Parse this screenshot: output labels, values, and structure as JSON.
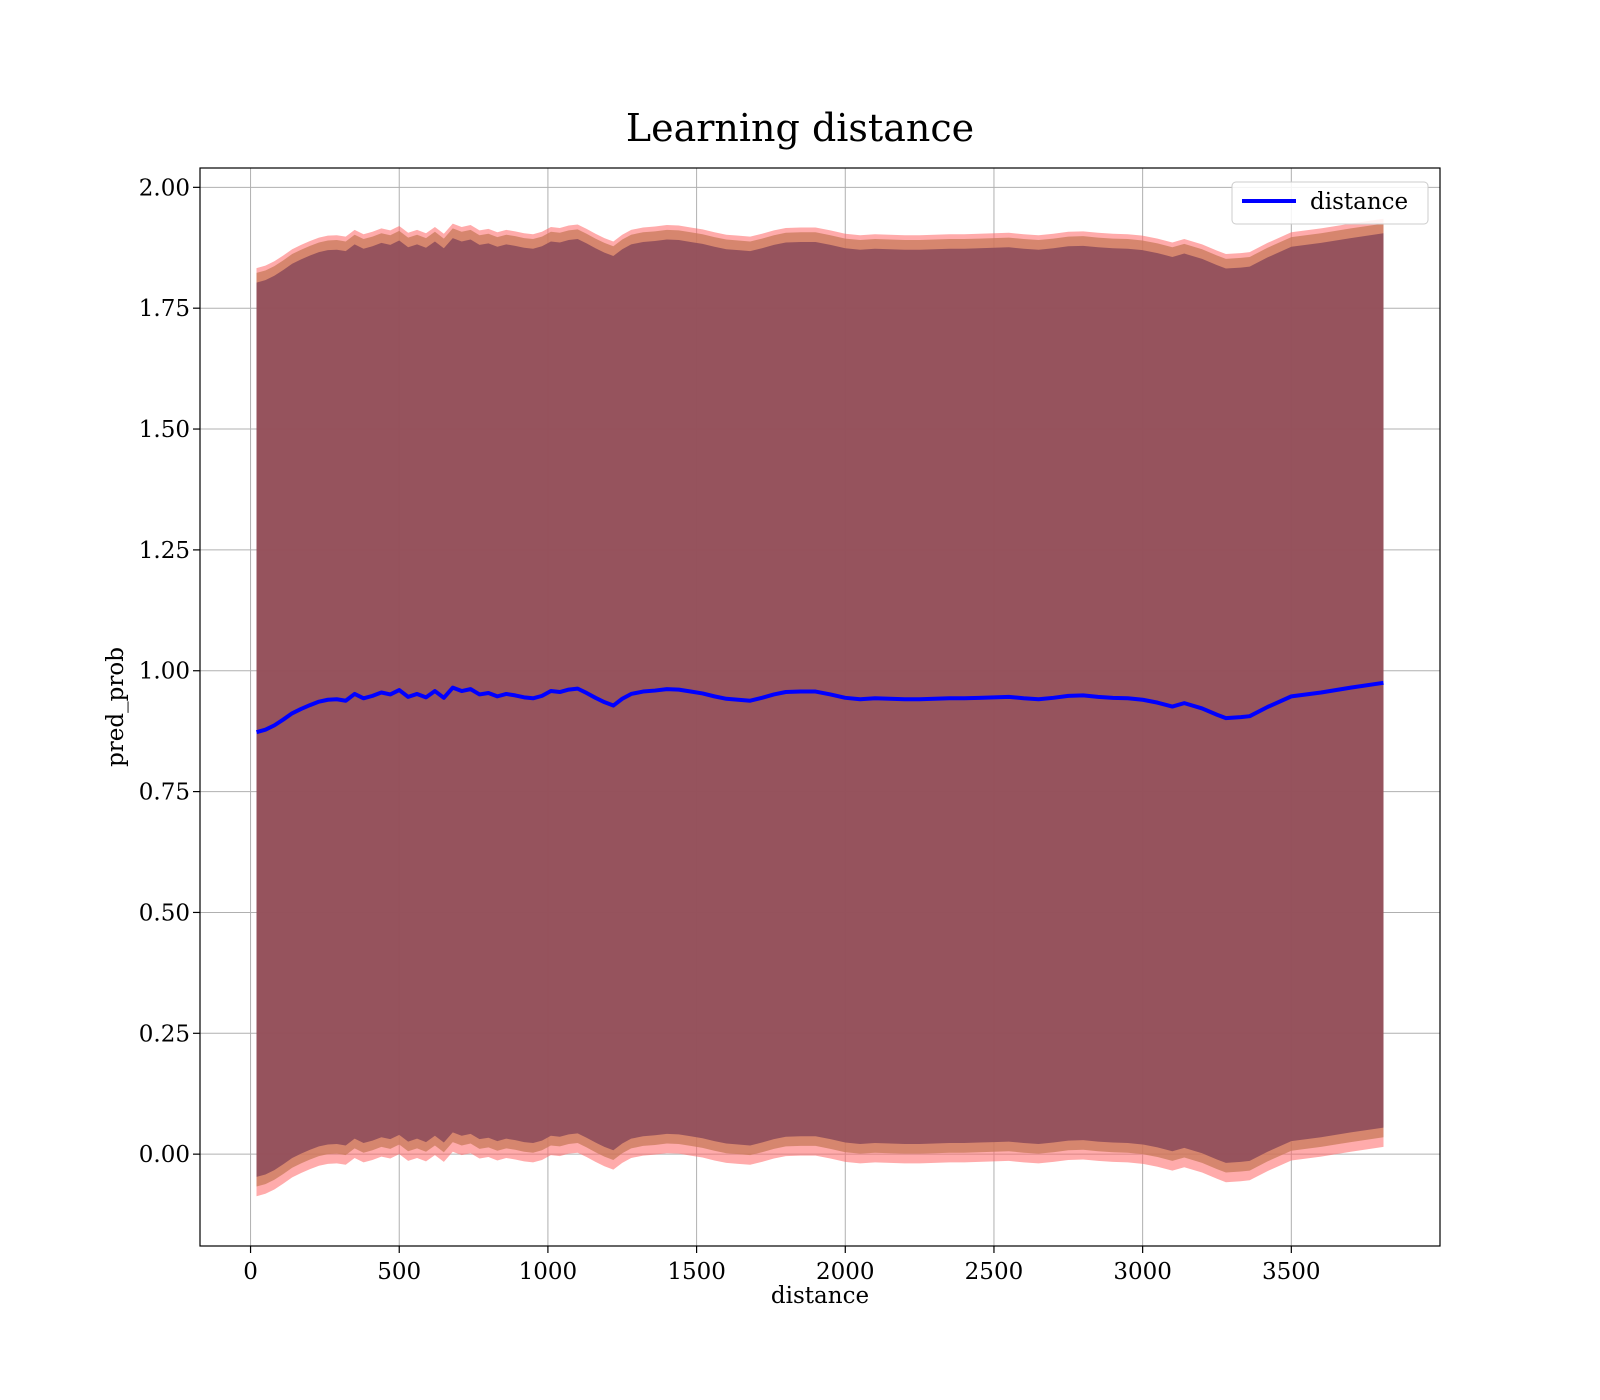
{
  "chart_data": {
    "type": "line",
    "title": "Learning distance",
    "xlabel": "distance",
    "ylabel": "pred_prob",
    "xlim": [
      -170,
      4000
    ],
    "ylim": [
      -0.19,
      2.04
    ],
    "xticks": [
      0,
      500,
      1000,
      1500,
      2000,
      2500,
      3000,
      3500
    ],
    "yticks": [
      0.0,
      0.25,
      0.5,
      0.75,
      1.0,
      1.25,
      1.5,
      1.75,
      2.0
    ],
    "xtick_labels": [
      "0",
      "500",
      "1000",
      "1500",
      "2000",
      "2500",
      "3000",
      "3500"
    ],
    "ytick_labels": [
      "0.00",
      "0.25",
      "0.50",
      "0.75",
      "1.00",
      "1.25",
      "1.50",
      "1.75",
      "2.00"
    ],
    "grid": true,
    "legend": {
      "position": "top-right",
      "entries": [
        "distance"
      ]
    },
    "colors": {
      "line": "#0000ff",
      "band_outer": "#ff6666",
      "band_inner": "#8b4a5a",
      "band_mid": "#c87a5a"
    },
    "x": [
      20,
      50,
      80,
      110,
      140,
      170,
      200,
      230,
      260,
      290,
      320,
      350,
      380,
      410,
      440,
      470,
      500,
      530,
      560,
      590,
      620,
      650,
      680,
      710,
      740,
      770,
      800,
      830,
      860,
      890,
      920,
      950,
      980,
      1010,
      1040,
      1070,
      1100,
      1130,
      1160,
      1190,
      1220,
      1250,
      1280,
      1320,
      1360,
      1400,
      1440,
      1480,
      1520,
      1560,
      1600,
      1640,
      1680,
      1720,
      1760,
      1800,
      1850,
      1900,
      1950,
      2000,
      2050,
      2100,
      2150,
      2200,
      2250,
      2300,
      2350,
      2400,
      2450,
      2500,
      2550,
      2600,
      2650,
      2700,
      2750,
      2800,
      2850,
      2900,
      2950,
      3000,
      3050,
      3100,
      3140,
      3200,
      3250,
      3280,
      3330,
      3360,
      3420,
      3500,
      3600,
      3700,
      3810
    ],
    "series": [
      {
        "name": "distance",
        "values": [
          0.873,
          0.878,
          0.887,
          0.899,
          0.912,
          0.921,
          0.929,
          0.936,
          0.94,
          0.941,
          0.938,
          0.952,
          0.943,
          0.948,
          0.955,
          0.951,
          0.96,
          0.946,
          0.952,
          0.945,
          0.958,
          0.944,
          0.965,
          0.958,
          0.962,
          0.951,
          0.954,
          0.947,
          0.952,
          0.949,
          0.945,
          0.943,
          0.948,
          0.958,
          0.956,
          0.961,
          0.963,
          0.954,
          0.944,
          0.935,
          0.928,
          0.942,
          0.952,
          0.957,
          0.959,
          0.962,
          0.961,
          0.957,
          0.953,
          0.947,
          0.942,
          0.94,
          0.938,
          0.944,
          0.951,
          0.956,
          0.957,
          0.957,
          0.951,
          0.944,
          0.941,
          0.943,
          0.942,
          0.941,
          0.941,
          0.942,
          0.943,
          0.943,
          0.944,
          0.945,
          0.946,
          0.943,
          0.941,
          0.944,
          0.948,
          0.949,
          0.946,
          0.944,
          0.943,
          0.94,
          0.934,
          0.926,
          0.933,
          0.922,
          0.909,
          0.902,
          0.904,
          0.906,
          0.925,
          0.947,
          0.955,
          0.965,
          0.975
        ]
      }
    ]
  }
}
